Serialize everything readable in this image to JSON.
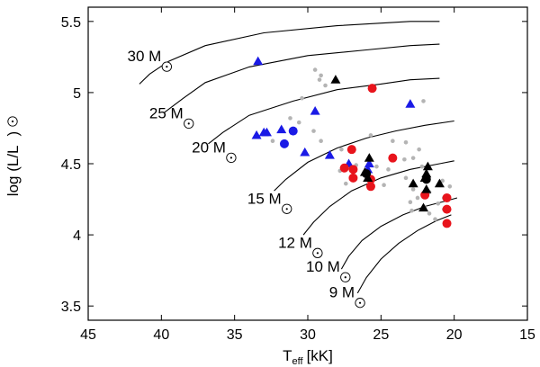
{
  "chart_data": {
    "type": "scatter",
    "title": "",
    "xlabel": "T_eff [kK]",
    "xlabel_main": "T",
    "xlabel_sub": "eff",
    "xlabel_unit": "[kK]",
    "ylabel": "log (L/L_sun)",
    "ylabel_prefix": "log (L/L",
    "ylabel_suffix": ")",
    "xlim": [
      45,
      15
    ],
    "ylim": [
      3.4,
      5.6
    ],
    "x_ticks": [
      45,
      40,
      35,
      30,
      25,
      20,
      15
    ],
    "x_tick_labels": [
      "45",
      "40",
      "35",
      "30",
      "25",
      "20",
      "15"
    ],
    "y_ticks": [
      3.5,
      4,
      4.5,
      5,
      5.5
    ],
    "y_tick_labels": [
      "3.5",
      "4",
      "4.5",
      "5",
      "5.5"
    ],
    "grid": false,
    "colors": {
      "grey": "#b4b4b4",
      "blue": "#1a1ae6",
      "red": "#e8141c",
      "black": "#000000",
      "track": "#000000"
    },
    "tracks": [
      {
        "label": "30 M",
        "label_x": 40.0,
        "label_y": 5.22,
        "points": [
          [
            41.5,
            5.06
          ],
          [
            40.8,
            5.13
          ],
          [
            39.5,
            5.22
          ],
          [
            37,
            5.33
          ],
          [
            33,
            5.42
          ],
          [
            28,
            5.47
          ],
          [
            23,
            5.5
          ],
          [
            21,
            5.5
          ]
        ]
      },
      {
        "label": "25 M",
        "label_x": 38.5,
        "label_y": 4.82,
        "points": [
          [
            39.8,
            4.86
          ],
          [
            38.5,
            4.96
          ],
          [
            37,
            5.07
          ],
          [
            34,
            5.18
          ],
          [
            30,
            5.26
          ],
          [
            26,
            5.3
          ],
          [
            23,
            5.33
          ],
          [
            21,
            5.34
          ]
        ]
      },
      {
        "label": "20 M",
        "label_x": 35.6,
        "label_y": 4.58,
        "points": [
          [
            36.8,
            4.64
          ],
          [
            35.8,
            4.72
          ],
          [
            34,
            4.84
          ],
          [
            31,
            4.94
          ],
          [
            28,
            5.02
          ],
          [
            25,
            5.06
          ],
          [
            23,
            5.09
          ],
          [
            21,
            5.1
          ]
        ]
      },
      {
        "label": "15 M",
        "label_x": 31.8,
        "label_y": 4.22,
        "points": [
          [
            32.3,
            4.31
          ],
          [
            31.5,
            4.39
          ],
          [
            30,
            4.51
          ],
          [
            28,
            4.61
          ],
          [
            26,
            4.68
          ],
          [
            24,
            4.73
          ],
          [
            22,
            4.77
          ],
          [
            20,
            4.8
          ]
        ]
      },
      {
        "label": "12 M",
        "label_x": 29.7,
        "label_y": 3.91,
        "points": [
          [
            30.3,
            4.0
          ],
          [
            29.6,
            4.09
          ],
          [
            28.5,
            4.2
          ],
          [
            27,
            4.31
          ],
          [
            25,
            4.4
          ],
          [
            23,
            4.46
          ],
          [
            21,
            4.5
          ],
          [
            20,
            4.52
          ]
        ]
      },
      {
        "label": "10 M",
        "label_x": 27.8,
        "label_y": 3.74,
        "points": [
          [
            27.7,
            3.76
          ],
          [
            27.2,
            3.85
          ],
          [
            26.3,
            3.96
          ],
          [
            25,
            4.06
          ],
          [
            23.5,
            4.14
          ],
          [
            22,
            4.2
          ],
          [
            20.5,
            4.24
          ],
          [
            19.8,
            4.26
          ]
        ]
      },
      {
        "label": "9 M",
        "label_x": 26.8,
        "label_y": 3.56,
        "points": [
          [
            26.6,
            3.59
          ],
          [
            26.0,
            3.7
          ],
          [
            25.0,
            3.83
          ],
          [
            23.8,
            3.94
          ],
          [
            22.5,
            4.03
          ],
          [
            21.2,
            4.1
          ],
          [
            20.2,
            4.14
          ]
        ]
      }
    ],
    "series": [
      {
        "name": "grey",
        "marker": "dot",
        "color": "#b4b4b4",
        "points": [
          [
            29.1,
            5.12
          ],
          [
            29.5,
            5.16
          ],
          [
            28.8,
            5.05
          ],
          [
            29.2,
            5.09
          ],
          [
            30.4,
            4.96
          ],
          [
            31.2,
            4.82
          ],
          [
            30.9,
            4.72
          ],
          [
            30.6,
            4.79
          ],
          [
            29.6,
            4.73
          ],
          [
            29.1,
            4.66
          ],
          [
            27.7,
            4.6
          ],
          [
            25.7,
            4.7
          ],
          [
            24.2,
            4.66
          ],
          [
            23.3,
            4.65
          ],
          [
            22.1,
            4.94
          ],
          [
            22.4,
            4.6
          ],
          [
            22.8,
            4.54
          ],
          [
            21.9,
            4.44
          ],
          [
            25.3,
            4.48
          ],
          [
            24.5,
            4.46
          ],
          [
            23.4,
            4.53
          ],
          [
            22.2,
            4.48
          ],
          [
            23.3,
            4.4
          ],
          [
            24.8,
            4.35
          ],
          [
            22.8,
            4.32
          ],
          [
            23.0,
            4.23
          ],
          [
            21.7,
            4.3
          ],
          [
            21.7,
            4.15
          ],
          [
            21.1,
            4.22
          ],
          [
            20.7,
            4.26
          ],
          [
            20.3,
            4.34
          ],
          [
            20.8,
            4.38
          ],
          [
            22.0,
            4.19
          ],
          [
            22.9,
            4.17
          ],
          [
            20.7,
            4.18
          ],
          [
            21.3,
            4.11
          ],
          [
            22.5,
            4.26
          ],
          [
            32.4,
            4.66
          ],
          [
            27.8,
            4.45
          ],
          [
            26.9,
            4.41
          ],
          [
            26.7,
            4.49
          ],
          [
            27.4,
            4.36
          ]
        ]
      },
      {
        "name": "blue-triangles",
        "marker": "triangle",
        "color": "#1a1ae6",
        "points": [
          [
            33.4,
            5.22
          ],
          [
            23.0,
            4.92
          ],
          [
            29.5,
            4.87
          ],
          [
            31.8,
            4.74
          ],
          [
            32.8,
            4.72
          ],
          [
            33.0,
            4.72
          ],
          [
            33.5,
            4.7
          ],
          [
            30.2,
            4.58
          ],
          [
            28.5,
            4.56
          ],
          [
            27.2,
            4.5
          ],
          [
            25.8,
            4.5
          ],
          [
            25.9,
            4.46
          ]
        ]
      },
      {
        "name": "blue-circles",
        "marker": "circle",
        "color": "#1a1ae6",
        "points": [
          [
            31.0,
            4.73
          ],
          [
            31.6,
            4.64
          ]
        ]
      },
      {
        "name": "red-circles",
        "marker": "circle",
        "color": "#e8141c",
        "points": [
          [
            25.6,
            5.03
          ],
          [
            27.0,
            4.6
          ],
          [
            24.2,
            4.54
          ],
          [
            27.5,
            4.47
          ],
          [
            26.9,
            4.46
          ],
          [
            26.9,
            4.4
          ],
          [
            25.7,
            4.39
          ],
          [
            25.7,
            4.34
          ],
          [
            22.0,
            4.28
          ],
          [
            20.5,
            4.26
          ],
          [
            20.5,
            4.18
          ],
          [
            20.5,
            4.08
          ]
        ]
      },
      {
        "name": "black-triangles",
        "marker": "triangle",
        "color": "#000000",
        "points": [
          [
            28.1,
            5.09
          ],
          [
            25.8,
            4.54
          ],
          [
            26.1,
            4.44
          ],
          [
            25.9,
            4.4
          ],
          [
            21.8,
            4.48
          ],
          [
            21.9,
            4.43
          ],
          [
            22.0,
            4.4
          ],
          [
            21.0,
            4.36
          ],
          [
            22.8,
            4.36
          ],
          [
            21.9,
            4.32
          ],
          [
            22.1,
            4.19
          ]
        ]
      },
      {
        "name": "black-circles",
        "marker": "circle",
        "color": "#000000",
        "points": [
          [
            26.0,
            4.43
          ],
          [
            21.9,
            4.39
          ]
        ]
      }
    ]
  }
}
